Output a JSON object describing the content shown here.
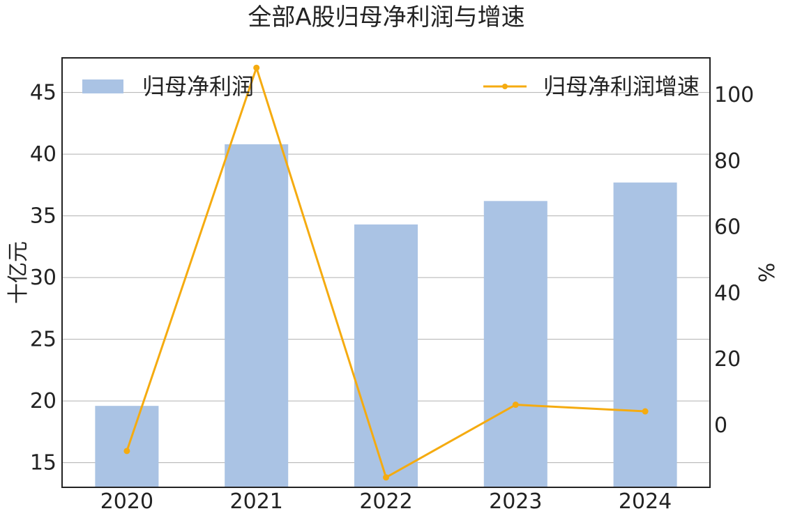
{
  "chart_data": {
    "type": "bar",
    "title": "全部A股归母净利润与增速",
    "categories": [
      "2020",
      "2021",
      "2022",
      "2023",
      "2024"
    ],
    "series": [
      {
        "name": "归母净利润",
        "type": "bar",
        "axis": "left",
        "color": "#aac3e4",
        "values": [
          19.6,
          40.8,
          34.3,
          36.2,
          37.7
        ]
      },
      {
        "name": "归母净利润增速",
        "type": "line",
        "axis": "right",
        "color": "#f5ab10",
        "values": [
          -8.0,
          108.0,
          -16.0,
          6.0,
          4.0
        ]
      }
    ],
    "ylabel_left": "十亿元",
    "ylabel_right": "%",
    "ylim_left": [
      13,
      47.8
    ],
    "ylim_right": [
      -19,
      111
    ],
    "yticks_left": [
      15,
      20,
      25,
      30,
      35,
      40,
      45
    ],
    "yticks_right": [
      0,
      20,
      40,
      60,
      80,
      100
    ],
    "grid": true,
    "legend": [
      "upper-left",
      "upper-right"
    ]
  }
}
